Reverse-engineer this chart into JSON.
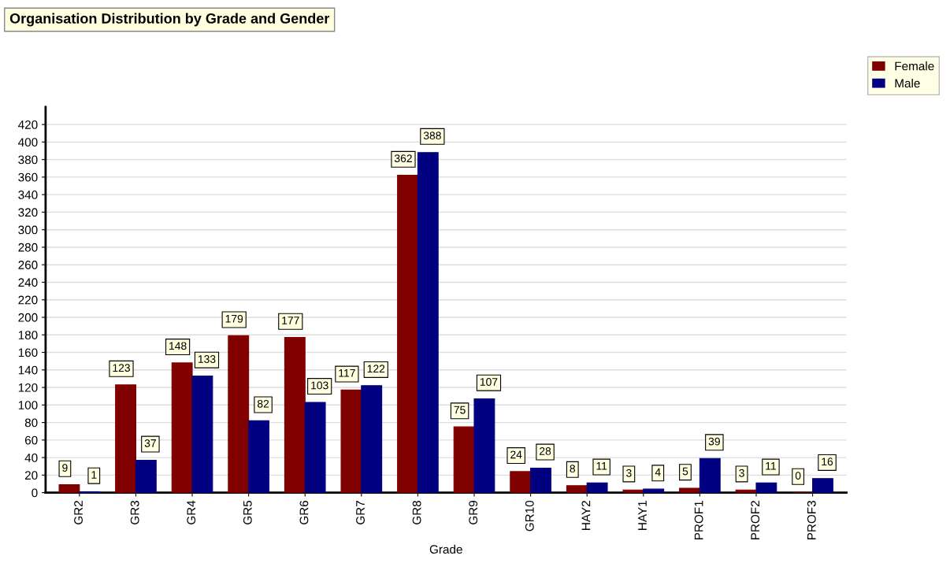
{
  "chart_data": {
    "type": "bar",
    "title": "Organisation Distribution by Grade and Gender",
    "xlabel": "Grade",
    "categories": [
      "GR2",
      "GR3",
      "GR4",
      "GR5",
      "GR6",
      "GR7",
      "GR8",
      "GR9",
      "GR10",
      "HAY2",
      "HAY1",
      "PROF1",
      "PROF2",
      "PROF3"
    ],
    "series": [
      {
        "name": "Female",
        "color": "#800000",
        "values": [
          9,
          123,
          148,
          179,
          177,
          117,
          362,
          75,
          24,
          8,
          3,
          5,
          3,
          0
        ]
      },
      {
        "name": "Male",
        "color": "#000080",
        "values": [
          1,
          37,
          133,
          82,
          103,
          122,
          388,
          107,
          28,
          11,
          4,
          39,
          11,
          16
        ]
      }
    ],
    "data_labels": true,
    "ylim": [
      0,
      440
    ],
    "yticks": [
      0,
      20,
      40,
      60,
      80,
      100,
      120,
      140,
      160,
      180,
      200,
      220,
      240,
      260,
      280,
      300,
      320,
      340,
      360,
      380,
      400,
      420
    ],
    "grid": "y",
    "legend": "top right"
  }
}
